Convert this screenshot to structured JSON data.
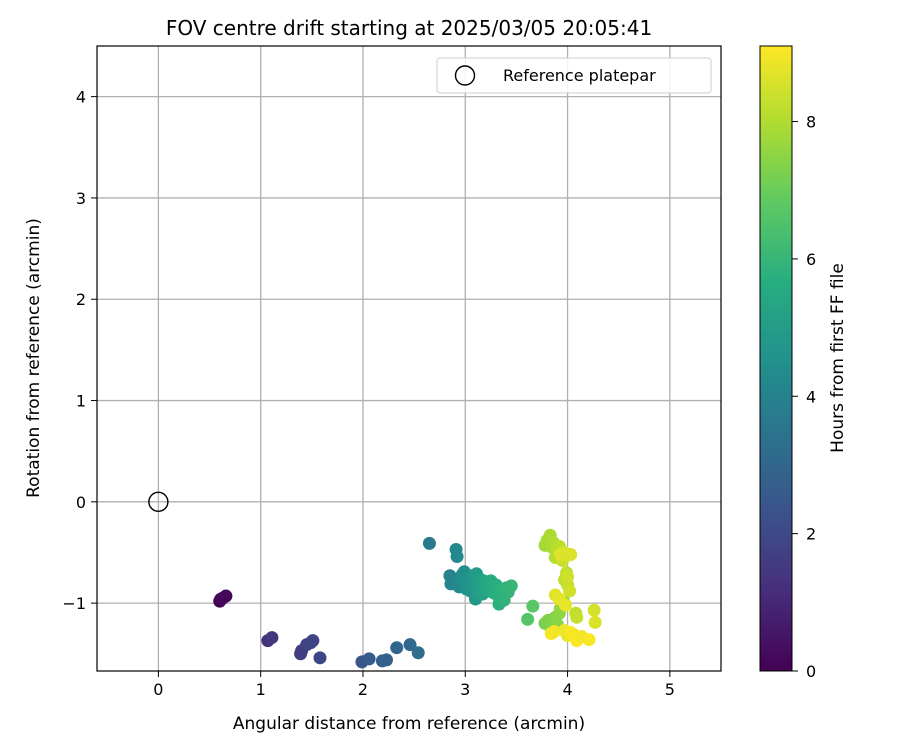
{
  "chart_data": {
    "type": "scatter",
    "title": "FOV centre drift starting at 2025/03/05 20:05:41",
    "xlabel": "Angular distance from reference (arcmin)",
    "ylabel": "Rotation from reference (arcmin)",
    "xlim": [
      -0.6,
      5.5
    ],
    "ylim": [
      -1.67,
      4.5
    ],
    "xticks": [
      0,
      1,
      2,
      3,
      4,
      5
    ],
    "xtick_labels": [
      "0",
      "1",
      "2",
      "3",
      "4",
      "5"
    ],
    "yticks": [
      -1,
      0,
      1,
      2,
      3,
      4
    ],
    "ytick_labels": [
      "−1",
      "0",
      "1",
      "2",
      "3",
      "4"
    ],
    "grid": true,
    "legend": {
      "placement": "top-right",
      "entries": [
        "Reference platepar"
      ]
    },
    "reference_point": {
      "label": "Reference platepar",
      "x": 0,
      "y": 0
    },
    "colorbar": {
      "label": "Hours from first FF file",
      "colormap": "viridis",
      "range": [
        0,
        9.1
      ],
      "ticks": [
        0,
        2,
        4,
        6,
        8
      ],
      "tick_labels": [
        "0",
        "2",
        "4",
        "6",
        "8"
      ]
    },
    "points": [
      {
        "x": 0.6,
        "y": -0.98,
        "h": 0.0
      },
      {
        "x": 0.63,
        "y": -0.95,
        "h": 0.1
      },
      {
        "x": 0.66,
        "y": -0.93,
        "h": 0.2
      },
      {
        "x": 0.61,
        "y": -0.96,
        "h": 0.15
      },
      {
        "x": 1.07,
        "y": -1.37,
        "h": 1.3
      },
      {
        "x": 1.11,
        "y": -1.34,
        "h": 1.4
      },
      {
        "x": 1.4,
        "y": -1.47,
        "h": 1.6
      },
      {
        "x": 1.39,
        "y": -1.5,
        "h": 1.65
      },
      {
        "x": 1.45,
        "y": -1.41,
        "h": 1.75
      },
      {
        "x": 1.51,
        "y": -1.37,
        "h": 1.8
      },
      {
        "x": 1.49,
        "y": -1.39,
        "h": 1.85
      },
      {
        "x": 1.58,
        "y": -1.54,
        "h": 1.95
      },
      {
        "x": 1.99,
        "y": -1.58,
        "h": 2.5
      },
      {
        "x": 2.06,
        "y": -1.55,
        "h": 2.6
      },
      {
        "x": 2.19,
        "y": -1.57,
        "h": 2.75
      },
      {
        "x": 2.23,
        "y": -1.56,
        "h": 2.8
      },
      {
        "x": 2.33,
        "y": -1.44,
        "h": 3.0
      },
      {
        "x": 2.46,
        "y": -1.41,
        "h": 3.1
      },
      {
        "x": 2.54,
        "y": -1.49,
        "h": 3.2
      },
      {
        "x": 2.65,
        "y": -0.41,
        "h": 3.7
      },
      {
        "x": 2.88,
        "y": -0.77,
        "h": 4.0
      },
      {
        "x": 2.85,
        "y": -0.73,
        "h": 4.05
      },
      {
        "x": 2.86,
        "y": -0.81,
        "h": 4.1
      },
      {
        "x": 2.91,
        "y": -0.47,
        "h": 4.2
      },
      {
        "x": 2.92,
        "y": -0.54,
        "h": 4.25
      },
      {
        "x": 2.94,
        "y": -0.84,
        "h": 4.3
      },
      {
        "x": 2.96,
        "y": -0.78,
        "h": 4.35
      },
      {
        "x": 2.97,
        "y": -0.72,
        "h": 4.4
      },
      {
        "x": 2.99,
        "y": -0.69,
        "h": 4.45
      },
      {
        "x": 3.0,
        "y": -0.79,
        "h": 4.5
      },
      {
        "x": 3.01,
        "y": -0.86,
        "h": 4.55
      },
      {
        "x": 3.03,
        "y": -0.76,
        "h": 4.6
      },
      {
        "x": 3.04,
        "y": -0.82,
        "h": 4.65
      },
      {
        "x": 3.05,
        "y": -0.88,
        "h": 4.7
      },
      {
        "x": 3.07,
        "y": -0.73,
        "h": 4.75
      },
      {
        "x": 3.08,
        "y": -0.79,
        "h": 4.8
      },
      {
        "x": 3.09,
        "y": -0.85,
        "h": 4.85
      },
      {
        "x": 3.1,
        "y": -0.96,
        "h": 4.9
      },
      {
        "x": 3.11,
        "y": -0.71,
        "h": 4.95
      },
      {
        "x": 3.12,
        "y": -0.81,
        "h": 5.0
      },
      {
        "x": 3.13,
        "y": -0.89,
        "h": 5.05
      },
      {
        "x": 3.14,
        "y": -0.76,
        "h": 5.1
      },
      {
        "x": 3.15,
        "y": -0.83,
        "h": 5.15
      },
      {
        "x": 3.17,
        "y": -0.91,
        "h": 5.2
      },
      {
        "x": 3.18,
        "y": -0.78,
        "h": 5.25
      },
      {
        "x": 3.2,
        "y": -0.86,
        "h": 5.3
      },
      {
        "x": 3.21,
        "y": -0.8,
        "h": 5.35
      },
      {
        "x": 3.22,
        "y": -0.88,
        "h": 5.4
      },
      {
        "x": 3.24,
        "y": -0.82,
        "h": 5.45
      },
      {
        "x": 3.25,
        "y": -0.78,
        "h": 5.5
      },
      {
        "x": 3.27,
        "y": -0.85,
        "h": 5.55
      },
      {
        "x": 3.28,
        "y": -0.9,
        "h": 5.6
      },
      {
        "x": 3.3,
        "y": -0.82,
        "h": 5.65
      },
      {
        "x": 3.32,
        "y": -0.93,
        "h": 5.7
      },
      {
        "x": 3.33,
        "y": -1.01,
        "h": 5.75
      },
      {
        "x": 3.36,
        "y": -0.87,
        "h": 5.8
      },
      {
        "x": 3.38,
        "y": -0.97,
        "h": 5.85
      },
      {
        "x": 3.4,
        "y": -0.85,
        "h": 5.9
      },
      {
        "x": 3.42,
        "y": -0.89,
        "h": 5.95
      },
      {
        "x": 3.45,
        "y": -0.83,
        "h": 6.0
      },
      {
        "x": 3.61,
        "y": -1.16,
        "h": 6.6
      },
      {
        "x": 3.66,
        "y": -1.03,
        "h": 6.7
      },
      {
        "x": 3.78,
        "y": -1.2,
        "h": 7.2
      },
      {
        "x": 3.81,
        "y": -1.17,
        "h": 7.3
      },
      {
        "x": 3.84,
        "y": -1.25,
        "h": 7.35
      },
      {
        "x": 3.88,
        "y": -1.14,
        "h": 7.4
      },
      {
        "x": 3.9,
        "y": -1.21,
        "h": 7.45
      },
      {
        "x": 3.92,
        "y": -1.1,
        "h": 7.5
      },
      {
        "x": 3.93,
        "y": -1.05,
        "h": 7.55
      },
      {
        "x": 3.96,
        "y": -0.98,
        "h": 7.6
      },
      {
        "x": 3.78,
        "y": -0.43,
        "h": 7.8
      },
      {
        "x": 3.8,
        "y": -0.38,
        "h": 7.85
      },
      {
        "x": 3.83,
        "y": -0.33,
        "h": 7.9
      },
      {
        "x": 3.85,
        "y": -0.45,
        "h": 7.95
      },
      {
        "x": 3.86,
        "y": -0.4,
        "h": 8.0
      },
      {
        "x": 3.88,
        "y": -0.55,
        "h": 8.05
      },
      {
        "x": 3.9,
        "y": -0.48,
        "h": 8.1
      },
      {
        "x": 3.92,
        "y": -0.44,
        "h": 8.15
      },
      {
        "x": 3.97,
        "y": -0.77,
        "h": 8.2
      },
      {
        "x": 3.99,
        "y": -0.7,
        "h": 8.25
      },
      {
        "x": 4.0,
        "y": -0.82,
        "h": 8.3
      },
      {
        "x": 3.95,
        "y": -0.58,
        "h": 8.35
      },
      {
        "x": 4.0,
        "y": -0.74,
        "h": 8.4
      },
      {
        "x": 4.02,
        "y": -0.88,
        "h": 8.45
      },
      {
        "x": 3.97,
        "y": -0.5,
        "h": 8.5
      },
      {
        "x": 3.99,
        "y": -0.53,
        "h": 8.55
      },
      {
        "x": 4.03,
        "y": -0.52,
        "h": 8.6
      },
      {
        "x": 3.93,
        "y": -0.52,
        "h": 8.65
      },
      {
        "x": 3.88,
        "y": -0.92,
        "h": 8.7
      },
      {
        "x": 3.92,
        "y": -0.96,
        "h": 8.75
      },
      {
        "x": 3.98,
        "y": -1.02,
        "h": 8.8
      },
      {
        "x": 4.08,
        "y": -1.1,
        "h": 8.2
      },
      {
        "x": 4.09,
        "y": -1.14,
        "h": 8.3
      },
      {
        "x": 4.26,
        "y": -1.07,
        "h": 8.5
      },
      {
        "x": 4.27,
        "y": -1.19,
        "h": 8.6
      },
      {
        "x": 3.84,
        "y": -1.3,
        "h": 9.0
      },
      {
        "x": 3.87,
        "y": -1.28,
        "h": 8.95
      },
      {
        "x": 3.97,
        "y": -1.27,
        "h": 8.9
      },
      {
        "x": 4.0,
        "y": -1.32,
        "h": 8.85
      },
      {
        "x": 4.03,
        "y": -1.29,
        "h": 9.05
      },
      {
        "x": 4.06,
        "y": -1.31,
        "h": 9.0
      },
      {
        "x": 4.09,
        "y": -1.37,
        "h": 9.1
      },
      {
        "x": 4.14,
        "y": -1.33,
        "h": 8.95
      },
      {
        "x": 4.21,
        "y": -1.36,
        "h": 9.05
      }
    ]
  }
}
